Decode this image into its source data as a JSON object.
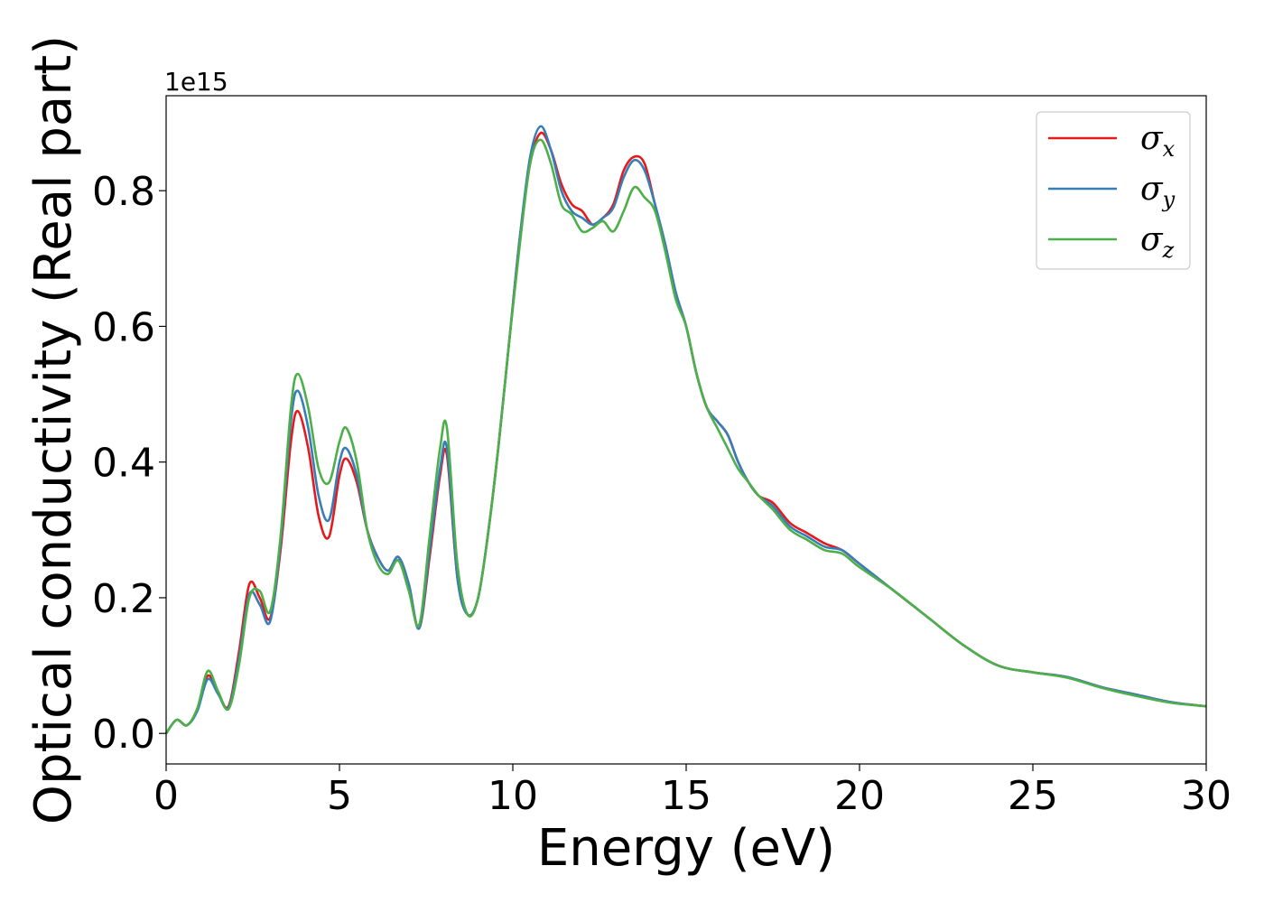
{
  "chart_data": {
    "type": "line",
    "xlabel": "Energy (eV)",
    "ylabel": "Optical conductivity (Real part)",
    "y_offset_label": "1e15",
    "xlim": [
      0,
      30
    ],
    "ylim": [
      -0.045,
      0.94
    ],
    "x_ticks": [
      0,
      5,
      10,
      15,
      20,
      25,
      30
    ],
    "x_tick_labels": [
      "0",
      "5",
      "10",
      "15",
      "20",
      "25",
      "30"
    ],
    "y_ticks": [
      0.0,
      0.2,
      0.4,
      0.6,
      0.8
    ],
    "y_tick_labels": [
      "0.0",
      "0.2",
      "0.4",
      "0.6",
      "0.8"
    ],
    "grid": false,
    "legend_position": "top-right",
    "x": [
      0,
      0.3,
      0.6,
      0.9,
      1.2,
      1.5,
      1.8,
      2.1,
      2.4,
      2.7,
      3.0,
      3.3,
      3.6,
      3.8,
      4.1,
      4.4,
      4.7,
      5.0,
      5.2,
      5.5,
      5.8,
      6.1,
      6.4,
      6.7,
      7.0,
      7.3,
      7.6,
      7.9,
      8.1,
      8.4,
      8.7,
      9.0,
      9.3,
      9.6,
      9.9,
      10.2,
      10.5,
      10.8,
      11.1,
      11.4,
      11.7,
      12.0,
      12.3,
      12.6,
      12.9,
      13.2,
      13.5,
      13.8,
      14.1,
      14.4,
      14.7,
      15.0,
      15.3,
      15.6,
      15.9,
      16.2,
      16.5,
      16.8,
      17.1,
      17.5,
      18.0,
      18.5,
      19.0,
      19.5,
      20.0,
      21.0,
      22.0,
      23.0,
      24.0,
      25.0,
      26.0,
      27.0,
      28.0,
      29.0,
      30.0
    ],
    "series": [
      {
        "name": "σx",
        "legend_main": "σ",
        "legend_sub": "x",
        "color": "#e41a1c",
        "values": [
          0.0,
          0.02,
          0.012,
          0.035,
          0.085,
          0.06,
          0.04,
          0.12,
          0.22,
          0.2,
          0.17,
          0.27,
          0.43,
          0.475,
          0.42,
          0.32,
          0.29,
          0.38,
          0.405,
          0.37,
          0.3,
          0.26,
          0.24,
          0.26,
          0.22,
          0.155,
          0.26,
          0.38,
          0.41,
          0.23,
          0.175,
          0.2,
          0.3,
          0.43,
          0.58,
          0.73,
          0.84,
          0.885,
          0.86,
          0.81,
          0.78,
          0.77,
          0.75,
          0.76,
          0.78,
          0.83,
          0.85,
          0.84,
          0.78,
          0.72,
          0.65,
          0.6,
          0.53,
          0.48,
          0.46,
          0.44,
          0.4,
          0.37,
          0.35,
          0.34,
          0.31,
          0.295,
          0.28,
          0.27,
          0.25,
          0.21,
          0.17,
          0.13,
          0.1,
          0.09,
          0.083,
          0.068,
          0.057,
          0.046,
          0.04
        ]
      },
      {
        "name": "σy",
        "legend_main": "σ",
        "legend_sub": "y",
        "color": "#377eb8",
        "values": [
          0.0,
          0.02,
          0.012,
          0.033,
          0.08,
          0.058,
          0.038,
          0.11,
          0.205,
          0.19,
          0.165,
          0.28,
          0.46,
          0.505,
          0.45,
          0.35,
          0.315,
          0.4,
          0.42,
          0.38,
          0.3,
          0.26,
          0.24,
          0.26,
          0.22,
          0.155,
          0.27,
          0.39,
          0.42,
          0.23,
          0.175,
          0.2,
          0.3,
          0.43,
          0.58,
          0.73,
          0.85,
          0.895,
          0.86,
          0.8,
          0.77,
          0.76,
          0.75,
          0.76,
          0.775,
          0.82,
          0.845,
          0.83,
          0.78,
          0.72,
          0.65,
          0.6,
          0.53,
          0.48,
          0.46,
          0.44,
          0.4,
          0.37,
          0.35,
          0.335,
          0.305,
          0.29,
          0.275,
          0.27,
          0.25,
          0.21,
          0.17,
          0.13,
          0.1,
          0.09,
          0.083,
          0.068,
          0.057,
          0.046,
          0.04
        ]
      },
      {
        "name": "σz",
        "legend_main": "σ",
        "legend_sub": "z",
        "color": "#4daf4a",
        "values": [
          0.0,
          0.02,
          0.012,
          0.037,
          0.092,
          0.062,
          0.036,
          0.1,
          0.2,
          0.21,
          0.18,
          0.29,
          0.48,
          0.53,
          0.48,
          0.39,
          0.37,
          0.43,
          0.45,
          0.4,
          0.3,
          0.25,
          0.235,
          0.255,
          0.21,
          0.16,
          0.29,
          0.42,
          0.45,
          0.25,
          0.175,
          0.2,
          0.3,
          0.43,
          0.58,
          0.72,
          0.84,
          0.875,
          0.84,
          0.78,
          0.765,
          0.74,
          0.745,
          0.755,
          0.74,
          0.77,
          0.805,
          0.79,
          0.77,
          0.71,
          0.64,
          0.6,
          0.53,
          0.48,
          0.45,
          0.42,
          0.39,
          0.37,
          0.35,
          0.33,
          0.3,
          0.285,
          0.27,
          0.265,
          0.245,
          0.21,
          0.17,
          0.13,
          0.1,
          0.09,
          0.082,
          0.067,
          0.055,
          0.045,
          0.04
        ]
      }
    ]
  }
}
